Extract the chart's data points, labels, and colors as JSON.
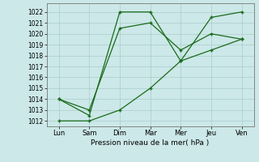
{
  "x_labels": [
    "Lun",
    "Sam",
    "Dim",
    "Mar",
    "Mer",
    "Jeu",
    "Ven"
  ],
  "x_positions": [
    0,
    1,
    2,
    3,
    4,
    5,
    6
  ],
  "line1": [
    1014.0,
    1012.5,
    1022.0,
    1022.0,
    1017.5,
    1021.5,
    1022.0
  ],
  "line2": [
    1014.0,
    1013.0,
    1020.5,
    1021.0,
    1018.5,
    1020.0,
    1019.5
  ],
  "line3": [
    1012.0,
    1012.0,
    1013.0,
    1015.0,
    1017.5,
    1018.5,
    1019.5
  ],
  "xlabel_text": "Pression niveau de la mer( hPa )",
  "ymin": 1011.5,
  "ymax": 1022.8,
  "yticks": [
    1012,
    1013,
    1014,
    1015,
    1016,
    1017,
    1018,
    1019,
    1020,
    1021,
    1022
  ],
  "line_color": "#1a6b1a",
  "bg_color": "#cce8e8",
  "grid_color": "#aacccc"
}
